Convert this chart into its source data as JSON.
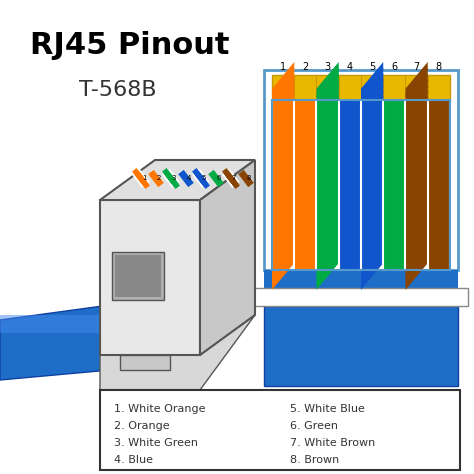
{
  "title_line1": "RJ45 Pinout",
  "title_line2": "T-568B",
  "background_color": "#ffffff",
  "wire_colors": [
    {
      "name": "White Orange",
      "solid": "#FF7700",
      "stripe": true
    },
    {
      "name": "Orange",
      "solid": "#FF7700",
      "stripe": false
    },
    {
      "name": "White Green",
      "solid": "#00AA44",
      "stripe": true
    },
    {
      "name": "Blue",
      "solid": "#1155CC",
      "stripe": false
    },
    {
      "name": "White Blue",
      "solid": "#1155CC",
      "stripe": true
    },
    {
      "name": "Green",
      "solid": "#00AA44",
      "stripe": false
    },
    {
      "name": "White Brown",
      "solid": "#884400",
      "stripe": true
    },
    {
      "name": "Brown",
      "solid": "#884400",
      "stripe": false
    }
  ],
  "legend_items_col1": [
    "1. White Orange",
    "2. Orange",
    "3. White Green",
    "4. Blue"
  ],
  "legend_items_col2": [
    "5. White Blue",
    "6. Green",
    "7. White Brown",
    "8. Brown"
  ],
  "cable_blue": "#1E6EC8",
  "connector_gray": "#E8E8E8",
  "connector_outline": "#555555",
  "gold_color": "#E8B800",
  "gold_dark": "#C89800"
}
